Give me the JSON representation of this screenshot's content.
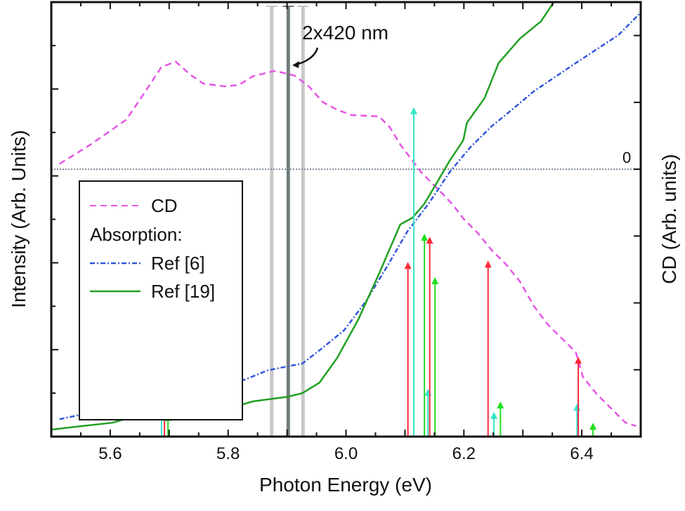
{
  "chart_data": {
    "type": "line",
    "xlabel": "Photon Energy (eV)",
    "ylabel": "Intensity (Arb. Units)",
    "ylabel_right": "CD (Arb. units)",
    "xlim": [
      5.5,
      6.5
    ],
    "ylim": [
      0,
      10
    ],
    "ylim_right": [
      -4.0,
      2.5
    ],
    "x_ticks": [
      5.6,
      5.8,
      6.0,
      6.2,
      6.4
    ],
    "x_tick_labels": [
      "5.6",
      "5.8",
      "6.0",
      "6.2",
      "6.4"
    ],
    "right_zero_label": "0",
    "grid": false,
    "legend": {
      "placement": "center-left",
      "cd_label": "CD",
      "absorption_label": "Absorption:",
      "ref6_label": "Ref [6]",
      "ref19_label": "Ref [19]"
    },
    "annotation": {
      "text": "2x420 nm",
      "target_x": 5.902
    },
    "laser_lines": [
      {
        "x": 5.874,
        "color": "#c8c8c8"
      },
      {
        "x": 5.902,
        "color": "#727b7b"
      },
      {
        "x": 5.927,
        "color": "#c8c8c8"
      }
    ],
    "series": [
      {
        "name": "CD",
        "axis": "right",
        "color": "#e655e6",
        "style": "dashed",
        "x": [
          5.514,
          5.567,
          5.609,
          5.627,
          5.651,
          5.675,
          5.687,
          5.711,
          5.735,
          5.758,
          5.794,
          5.818,
          5.842,
          5.878,
          5.89,
          5.913,
          5.937,
          5.961,
          5.985,
          6.009,
          6.033,
          6.056,
          6.074,
          6.092,
          6.11,
          6.128,
          6.146,
          6.164,
          6.181,
          6.199,
          6.223,
          6.247,
          6.271,
          6.295,
          6.319,
          6.342,
          6.366,
          6.39,
          6.402,
          6.426,
          6.45,
          6.474,
          6.492
        ],
        "y": [
          0.08,
          0.37,
          0.63,
          0.74,
          1.05,
          1.37,
          1.53,
          1.61,
          1.42,
          1.28,
          1.24,
          1.26,
          1.39,
          1.47,
          1.45,
          1.4,
          1.24,
          1.0,
          0.89,
          0.81,
          0.8,
          0.79,
          0.63,
          0.37,
          0.16,
          -0.05,
          -0.21,
          -0.37,
          -0.53,
          -0.74,
          -0.95,
          -1.21,
          -1.42,
          -1.68,
          -2.05,
          -2.32,
          -2.53,
          -2.74,
          -3.11,
          -3.37,
          -3.58,
          -3.79,
          -3.84
        ]
      },
      {
        "name": "Ref [6]",
        "axis": "left",
        "color": "#3355dd",
        "style": "dash-dot",
        "x": [
          5.514,
          5.556,
          5.592,
          5.627,
          5.651,
          5.675,
          5.689,
          5.711,
          5.758,
          5.794,
          5.83,
          5.866,
          5.902,
          5.926,
          5.961,
          5.997,
          6.033,
          6.069,
          6.104,
          6.14,
          6.176,
          6.211,
          6.247,
          6.283,
          6.319,
          6.354,
          6.39,
          6.426,
          6.462,
          6.5
        ],
        "y": [
          0.4,
          0.52,
          0.63,
          0.84,
          1.03,
          1.19,
          1.23,
          1.16,
          1.11,
          1.16,
          1.32,
          1.52,
          1.62,
          1.68,
          2.05,
          2.45,
          3.1,
          3.9,
          4.72,
          5.36,
          6.09,
          6.66,
          7.14,
          7.54,
          7.95,
          8.27,
          8.6,
          8.92,
          9.24,
          9.76
        ]
      },
      {
        "name": "Ref [19]",
        "axis": "left",
        "color": "#22a022",
        "style": "solid",
        "x": [
          5.5,
          5.544,
          5.604,
          5.663,
          5.735,
          5.788,
          5.842,
          5.902,
          5.926,
          5.955,
          5.985,
          6.021,
          6.056,
          6.092,
          6.113,
          6.133,
          6.151,
          6.175,
          6.199,
          6.205,
          6.235,
          6.259,
          6.295,
          6.331,
          6.355
        ],
        "y": [
          0.16,
          0.23,
          0.32,
          0.55,
          0.6,
          0.6,
          0.81,
          0.92,
          1.0,
          1.24,
          1.81,
          2.7,
          3.75,
          4.88,
          5.04,
          5.36,
          5.77,
          6.33,
          6.82,
          7.22,
          7.79,
          8.6,
          9.16,
          9.56,
          10.05
        ]
      }
    ],
    "transitions": [
      {
        "x": 5.687,
        "y": 0.57,
        "color": "#33e6cc"
      },
      {
        "x": 5.692,
        "y": 0.57,
        "color": "#ff2a3a"
      },
      {
        "x": 5.698,
        "y": 0.52,
        "color": "#22e022"
      },
      {
        "x": 6.105,
        "y": 4.02,
        "color": "#ff2a3a"
      },
      {
        "x": 6.115,
        "y": 7.58,
        "color": "#33e6cc"
      },
      {
        "x": 6.133,
        "y": 4.67,
        "color": "#22e022"
      },
      {
        "x": 6.139,
        "y": 1.1,
        "color": "#33e6cc"
      },
      {
        "x": 6.142,
        "y": 4.6,
        "color": "#ff2a3a"
      },
      {
        "x": 6.151,
        "y": 3.67,
        "color": "#22e022"
      },
      {
        "x": 6.241,
        "y": 4.05,
        "color": "#ff2a3a"
      },
      {
        "x": 6.251,
        "y": 0.57,
        "color": "#33e6cc"
      },
      {
        "x": 6.262,
        "y": 0.81,
        "color": "#22e022"
      },
      {
        "x": 6.392,
        "y": 0.76,
        "color": "#33e6cc"
      },
      {
        "x": 6.394,
        "y": 1.84,
        "color": "#ff2a3a"
      },
      {
        "x": 6.419,
        "y": 0.32,
        "color": "#22e022"
      }
    ]
  }
}
